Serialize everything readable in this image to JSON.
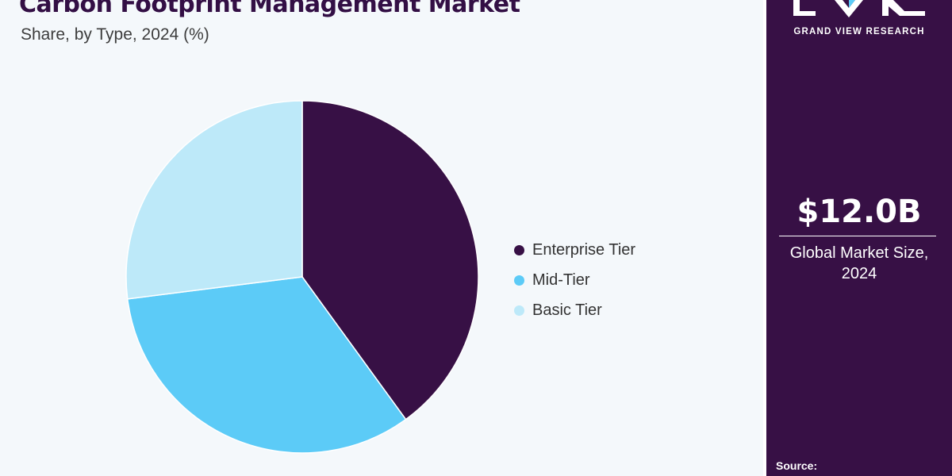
{
  "header": {
    "title": "Carbon Footprint Management Market",
    "subtitle": "Share, by Type, 2024 (%)"
  },
  "chart_data": {
    "type": "pie",
    "categories": [
      "Enterprise Tier",
      "Mid-Tier",
      "Basic Tier"
    ],
    "values": [
      40,
      33,
      27
    ],
    "colors": [
      "#371045",
      "#5ccbf7",
      "#bde9f9"
    ],
    "legend_position": "right",
    "start_angle": "12 o'clock",
    "direction": "clockwise"
  },
  "sidebar": {
    "brand": "GRAND VIEW RESEARCH",
    "market_size": "$12.0B",
    "market_label_line1": "Global Market Size,",
    "market_label_line2": "2024",
    "source_label": "Source:"
  }
}
